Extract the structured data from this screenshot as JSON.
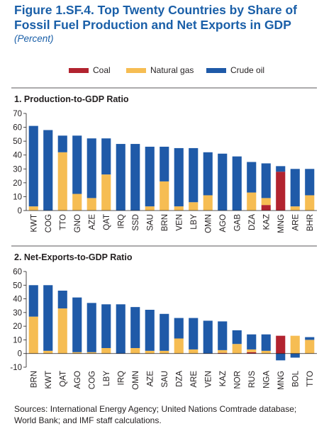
{
  "title": "Figure 1.SF.4.  Top Twenty Countries by Share of Fossil Fuel Production and Net Exports in GDP",
  "subtitle": "(Percent)",
  "source": "Sources: International Energy Agency; United Nations Comtrade database; World Bank; and IMF staff calculations.",
  "colors": {
    "coal": "#b2232f",
    "gas": "#f6bd53",
    "oil": "#1f5aa8"
  },
  "legend": [
    {
      "name": "Coal",
      "color": "#b2232f"
    },
    {
      "name": "Natural gas",
      "color": "#f6bd53"
    },
    {
      "name": "Crude oil",
      "color": "#1f5aa8"
    }
  ],
  "chart_data": [
    {
      "type": "bar",
      "stacked": true,
      "title": "1. Production-to-GDP Ratio",
      "ylim": [
        0,
        70
      ],
      "yticks": [
        0,
        10,
        20,
        30,
        40,
        50,
        60,
        70
      ],
      "grid": false,
      "categories": [
        "KWT",
        "COG",
        "TTO",
        "GNO",
        "AZE",
        "QAT",
        "IRQ",
        "SSD",
        "SAU",
        "BRN",
        "VEN",
        "LBY",
        "OMN",
        "AGO",
        "GAB",
        "DZA",
        "KAZ",
        "MNG",
        "ARE",
        "BHR"
      ],
      "series": [
        {
          "name": "Coal",
          "values": [
            0,
            0,
            0,
            0,
            0,
            0,
            0,
            0,
            0,
            0,
            0,
            0,
            0,
            0,
            0,
            0,
            4,
            28,
            0,
            0
          ]
        },
        {
          "name": "Natural gas",
          "values": [
            3,
            0,
            42,
            12,
            9,
            26,
            0,
            0,
            3,
            21,
            3,
            6,
            11,
            0,
            0,
            13,
            5,
            0,
            3,
            11
          ]
        },
        {
          "name": "Crude oil",
          "values": [
            58,
            58,
            12,
            42,
            43,
            26,
            48,
            48,
            43,
            25,
            42,
            39,
            31,
            41,
            39,
            22,
            25,
            4,
            27,
            19
          ]
        }
      ]
    },
    {
      "type": "bar",
      "stacked": true,
      "title": "2. Net-Exports-to-GDP Ratio",
      "ylim": [
        -10,
        60
      ],
      "yticks": [
        -10,
        0,
        10,
        20,
        30,
        40,
        50,
        60
      ],
      "grid": false,
      "categories": [
        "BRN",
        "KWT",
        "QAT",
        "AGO",
        "COG",
        "LBY",
        "IRQ",
        "OMN",
        "AZE",
        "SAU",
        "DZA",
        "ARE",
        "VEN",
        "KAZ",
        "NOR",
        "RUS",
        "NGA",
        "MNG",
        "BOL",
        "TTO"
      ],
      "series": [
        {
          "name": "Coal",
          "values": [
            0,
            0,
            0,
            0,
            0,
            0,
            0,
            0,
            0,
            0,
            0,
            0,
            0,
            0.5,
            0,
            1,
            0,
            13,
            0,
            0
          ]
        },
        {
          "name": "Natural gas",
          "values": [
            27,
            2,
            33,
            1,
            1,
            4,
            0,
            4,
            2,
            2,
            11,
            3,
            0,
            2,
            7,
            2,
            2,
            0,
            13,
            10
          ]
        },
        {
          "name": "Crude oil",
          "values": [
            23,
            48,
            13,
            40,
            36,
            32,
            36,
            30,
            30,
            27,
            15,
            23,
            24,
            21,
            10,
            11,
            12,
            -5,
            -3,
            2
          ]
        }
      ]
    }
  ]
}
